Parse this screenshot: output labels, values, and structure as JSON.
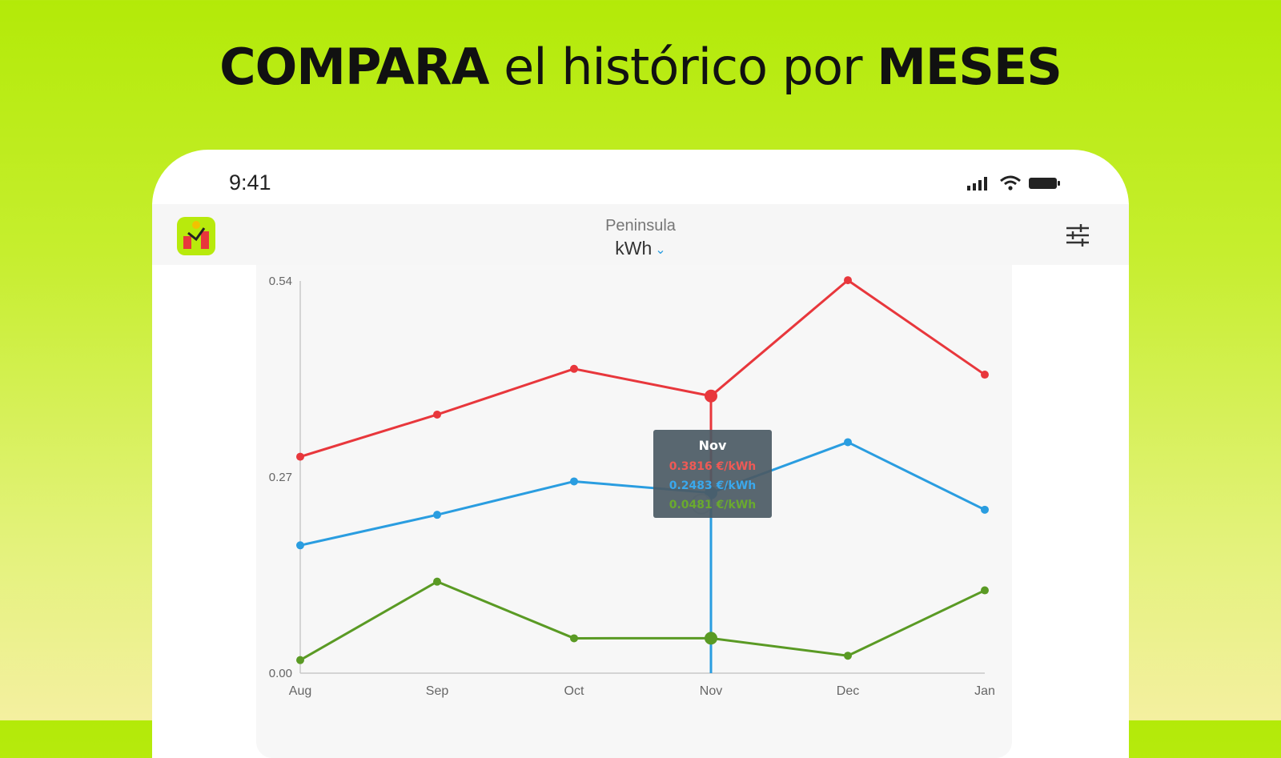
{
  "headline": {
    "bold_1": "COMPARA",
    "regular": " el histórico por ",
    "bold_2": "MESES"
  },
  "status_bar": {
    "time": "9:41"
  },
  "app_header": {
    "region": "Peninsula",
    "unit": "kWh"
  },
  "tooltip": {
    "title": "Nov",
    "rows": [
      "0.3816 €/kWh",
      "0.2483 €/kWh",
      "0.0481 €/kWh"
    ]
  },
  "colors": {
    "red": "#e8373c",
    "blue": "#2a9de0",
    "green": "#5a9a24"
  },
  "chart_data": {
    "type": "line",
    "categories": [
      "Aug",
      "Sep",
      "Oct",
      "Nov",
      "Dec",
      "Jan"
    ],
    "y_ticks": [
      "0.00",
      "0.27",
      "0.54"
    ],
    "ylim": [
      0,
      0.54
    ],
    "title": "",
    "xlabel": "",
    "ylabel": "",
    "selected_category": "Nov",
    "series": [
      {
        "color": "#e8373c",
        "values": [
          0.298,
          0.356,
          0.419,
          0.3816,
          0.541,
          0.411
        ]
      },
      {
        "color": "#2a9de0",
        "values": [
          0.176,
          0.218,
          0.264,
          0.2483,
          0.318,
          0.225
        ]
      },
      {
        "color": "#5a9a24",
        "values": [
          0.018,
          0.126,
          0.048,
          0.0481,
          0.024,
          0.114
        ]
      }
    ]
  }
}
